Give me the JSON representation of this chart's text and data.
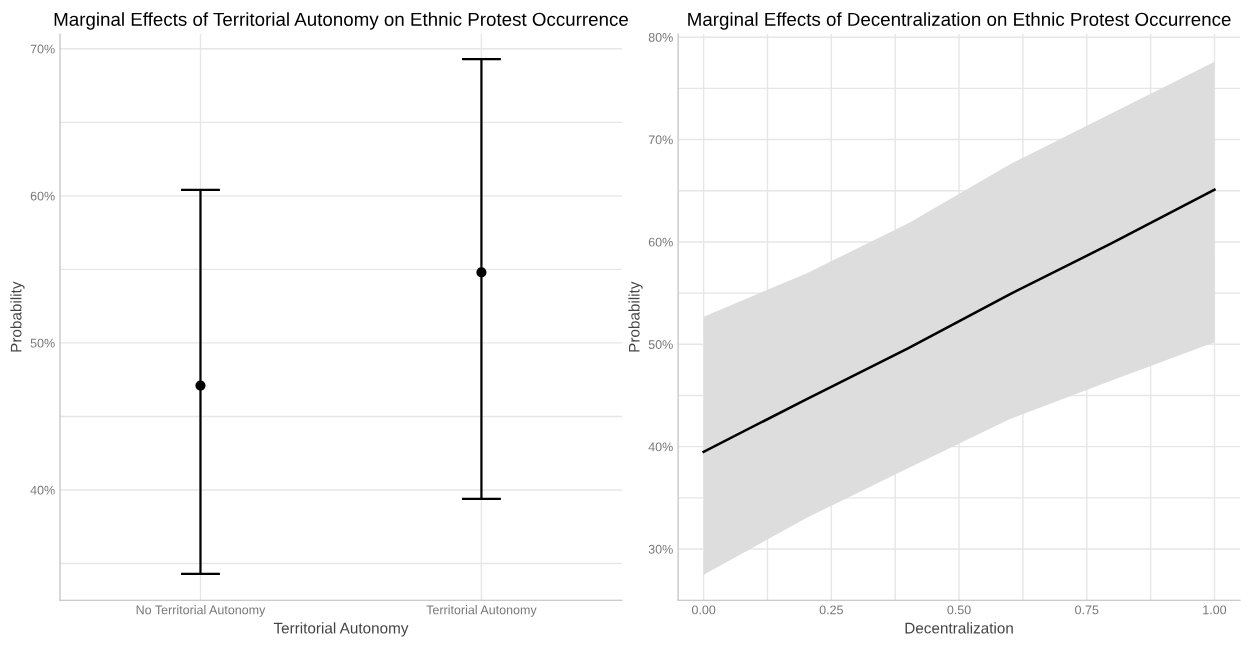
{
  "chart_data": [
    {
      "type": "scatter",
      "title": "Marginal Effects of Territorial Autonomy on Ethnic Protest Occurrence",
      "xlabel": "Territorial Autonomy",
      "ylabel": "Probability",
      "categories": [
        "No Territorial Autonomy",
        "Territorial Autonomy"
      ],
      "series": [
        {
          "color": "#000000",
          "values": [
            47.1,
            54.8
          ],
          "errors": [
            [
              34.3,
              60.4
            ],
            [
              39.4,
              69.3
            ]
          ]
        }
      ],
      "ylim": [
        32.5,
        71.0
      ],
      "yticks": [
        {
          "value": 35,
          "label": null
        },
        {
          "value": 40,
          "label": "40%"
        },
        {
          "value": 45,
          "label": null
        },
        {
          "value": 50,
          "label": "50%"
        },
        {
          "value": 55,
          "label": null
        },
        {
          "value": 60,
          "label": "60%"
        },
        {
          "value": 65,
          "label": null
        },
        {
          "value": 70,
          "label": "70%"
        }
      ],
      "grid": true,
      "marker": "circle"
    },
    {
      "type": "line",
      "title": "Marginal Effects of Decentralization on Ethnic Protest Occurrence",
      "xlabel": "Decentralization",
      "ylabel": "Probability",
      "series": [
        {
          "color": "#000000",
          "x": [
            0,
            0.2,
            0.4,
            0.6,
            0.8,
            1
          ],
          "values": [
            39.5,
            44.6,
            49.6,
            54.9,
            59.9,
            65.1
          ],
          "lower": [
            27.5,
            33.0,
            37.9,
            42.7,
            46.5,
            50.2
          ],
          "upper": [
            52.7,
            56.9,
            61.8,
            67.6,
            72.6,
            77.6
          ]
        }
      ],
      "xlim": [
        -0.05,
        1.05
      ],
      "xticks": [
        {
          "value": 0,
          "label": "0.00"
        },
        {
          "value": 0.125,
          "label": null
        },
        {
          "value": 0.25,
          "label": "0.25"
        },
        {
          "value": 0.375,
          "label": null
        },
        {
          "value": 0.5,
          "label": "0.50"
        },
        {
          "value": 0.625,
          "label": null
        },
        {
          "value": 0.75,
          "label": "0.75"
        },
        {
          "value": 0.875,
          "label": null
        },
        {
          "value": 1,
          "label": "1.00"
        }
      ],
      "ylim": [
        25.0,
        80.3
      ],
      "yticks": [
        {
          "value": 30,
          "label": "30%"
        },
        {
          "value": 35,
          "label": null
        },
        {
          "value": 40,
          "label": "40%"
        },
        {
          "value": 45,
          "label": null
        },
        {
          "value": 50,
          "label": "50%"
        },
        {
          "value": 55,
          "label": null
        },
        {
          "value": 60,
          "label": "60%"
        },
        {
          "value": 65,
          "label": null
        },
        {
          "value": 70,
          "label": "70%"
        },
        {
          "value": 75,
          "label": null
        },
        {
          "value": 80,
          "label": "80%"
        }
      ],
      "grid": true,
      "line_style": "solid",
      "marker": "none"
    }
  ]
}
